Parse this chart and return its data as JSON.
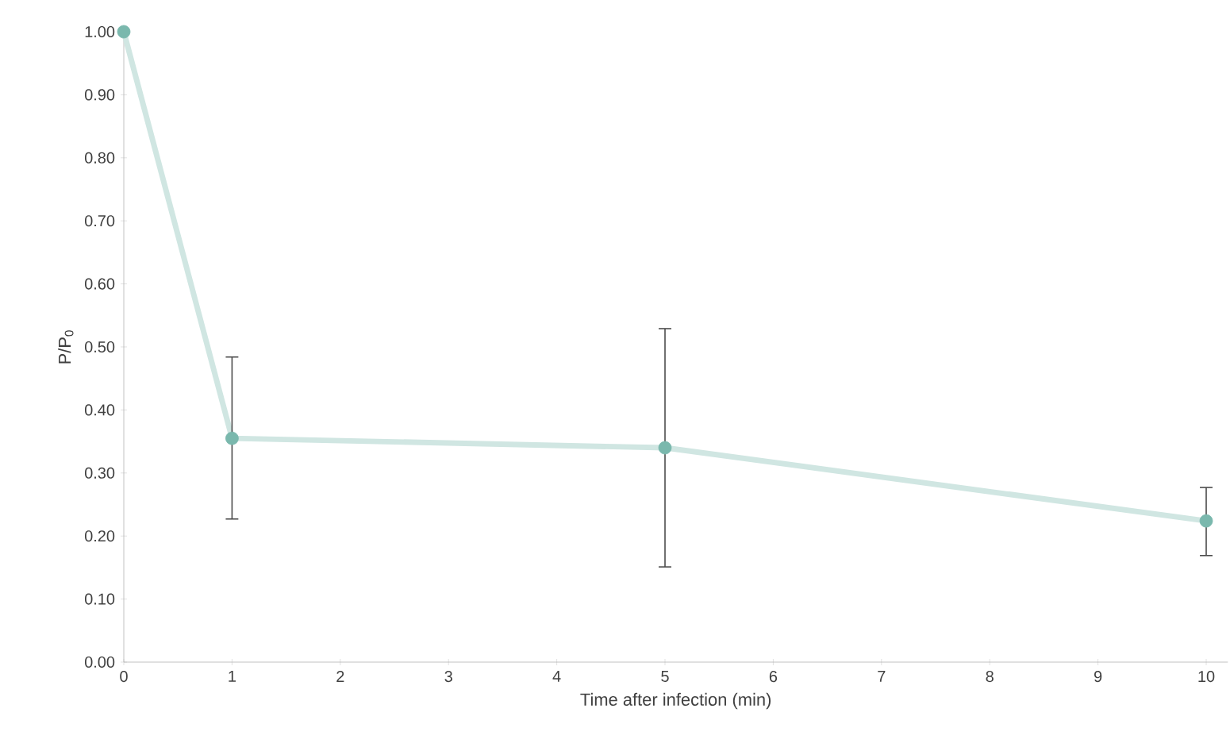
{
  "chart_data": {
    "type": "line",
    "xlabel": "Time after infection (min)",
    "ylabel": "P/P$_{0}$",
    "x": [
      0,
      1,
      5,
      10
    ],
    "series": [
      {
        "color": "#7ab8ad",
        "values": [
          1.0,
          0.355,
          0.34,
          0.224
        ],
        "errors": [
          null,
          [
            0.227,
            0.484
          ],
          [
            0.151,
            0.529
          ],
          [
            0.169,
            0.277
          ]
        ]
      }
    ],
    "marker": "circle",
    "line_style": "solid",
    "grid": false,
    "xlim": [
      0,
      10.2
    ],
    "ylim": [
      0,
      1.0
    ],
    "xticks": [
      0,
      1,
      2,
      3,
      4,
      5,
      6,
      7,
      8,
      9,
      10
    ],
    "yticks": [
      {
        "value": 0,
        "label": "0.00"
      },
      {
        "value": 0.1,
        "label": "0.10"
      },
      {
        "value": 0.2,
        "label": "0.20"
      },
      {
        "value": 0.3,
        "label": "0.30"
      },
      {
        "value": 0.4,
        "label": "0.40"
      },
      {
        "value": 0.5,
        "label": "0.50"
      },
      {
        "value": 0.6,
        "label": "0.60"
      },
      {
        "value": 0.7,
        "label": "0.70"
      },
      {
        "value": 0.8,
        "label": "0.80"
      },
      {
        "value": 0.9,
        "label": "0.90"
      },
      {
        "value": 1.0,
        "label": "1.00"
      }
    ]
  }
}
